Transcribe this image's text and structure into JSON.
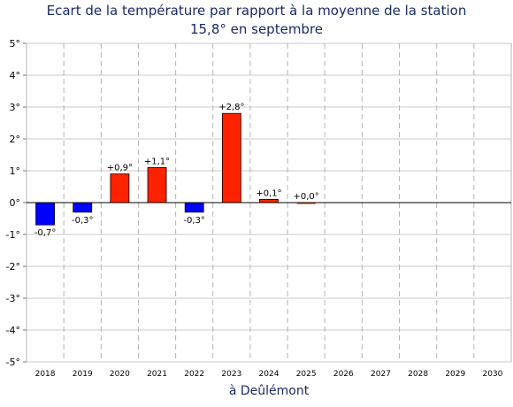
{
  "chart_data": {
    "type": "bar",
    "title_line1": "Ecart de la température par rapport à la moyenne de la station",
    "title_line2": "15,8° en septembre",
    "xlabel": "à Deûlémont",
    "ylabel": "",
    "ylim": [
      -5,
      5
    ],
    "yticks": [
      "5°",
      "4°",
      "3°",
      "2°",
      "1°",
      "0°",
      "-1°",
      "-2°",
      "-3°",
      "-4°",
      "-5°"
    ],
    "ytick_values": [
      5,
      4,
      3,
      2,
      1,
      0,
      -1,
      -2,
      -3,
      -4,
      -5
    ],
    "categories": [
      "2018",
      "2019",
      "2020",
      "2021",
      "2022",
      "2023",
      "2024",
      "2025",
      "2026",
      "2027",
      "2028",
      "2029",
      "2030"
    ],
    "values": [
      -0.7,
      -0.3,
      0.9,
      1.1,
      -0.3,
      2.8,
      0.1,
      0.0,
      null,
      null,
      null,
      null,
      null
    ],
    "labels": [
      "-0,7°",
      "-0,3°",
      "+0,9°",
      "+1,1°",
      "-0,3°",
      "+2,8°",
      "+0,1°",
      "+0,0°",
      "",
      "",
      "",
      "",
      ""
    ],
    "grid": true,
    "colors": {
      "positive": "#ff2200",
      "negative": "#0000ff",
      "grid": "#c8c8c8",
      "title": "#1a2a66"
    }
  }
}
